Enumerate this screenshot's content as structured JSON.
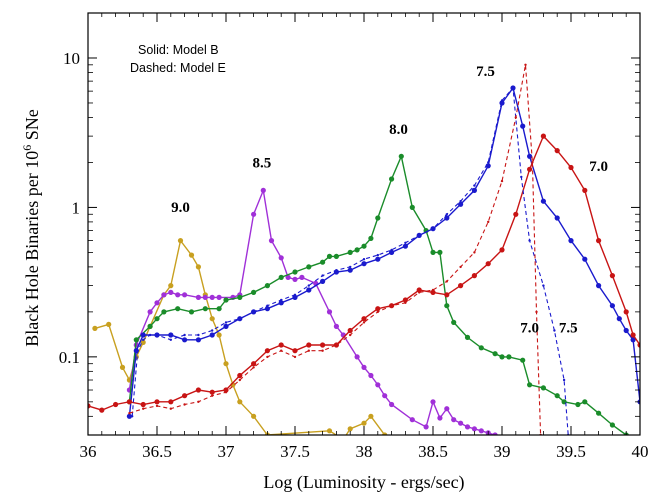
{
  "chart_data": {
    "type": "line",
    "xlabel": "Log (Luminosity - ergs/sec)",
    "ylabel_main": "Black Hole Binaries per 10",
    "ylabel_sup": "6",
    "ylabel_tail": " SNe",
    "yscale": "log",
    "xlim": [
      36,
      40
    ],
    "ylim": [
      0.03,
      20
    ],
    "x_ticks": [
      36,
      36.5,
      37,
      37.5,
      38,
      38.5,
      39,
      39.5,
      40
    ],
    "x_tick_labels": [
      "36",
      "36.5",
      "37",
      "37.5",
      "38",
      "38.5",
      "39",
      "39.5",
      "40"
    ],
    "y_ticks": [
      0.1,
      1,
      10
    ],
    "y_tick_labels": [
      "0.1",
      "1",
      "10"
    ],
    "notes": [
      "Solid: Model B",
      "Dashed: Model E"
    ],
    "series": [
      {
        "label": "9.0",
        "color": "#c8a020",
        "style": "solid",
        "points": [
          [
            36.05,
            0.155
          ],
          [
            36.15,
            0.165
          ],
          [
            36.25,
            0.085
          ],
          [
            36.3,
            0.07
          ],
          [
            36.35,
            0.1
          ],
          [
            36.4,
            0.125
          ],
          [
            36.45,
            0.16
          ],
          [
            36.55,
            0.26
          ],
          [
            36.6,
            0.3
          ],
          [
            36.67,
            0.6
          ],
          [
            36.75,
            0.48
          ],
          [
            36.8,
            0.4
          ],
          [
            36.85,
            0.26
          ],
          [
            36.9,
            0.18
          ],
          [
            36.95,
            0.14
          ],
          [
            37.0,
            0.09
          ],
          [
            37.05,
            0.065
          ],
          [
            37.1,
            0.05
          ],
          [
            37.2,
            0.04
          ],
          [
            37.3,
            0.03
          ],
          [
            37.75,
            0.032
          ],
          [
            37.85,
            0.028
          ],
          [
            37.9,
            0.033
          ],
          [
            38.0,
            0.036
          ],
          [
            38.05,
            0.04
          ],
          [
            38.15,
            0.03
          ]
        ]
      },
      {
        "label": "8.5",
        "color": "#a030d8",
        "style": "solid",
        "points": [
          [
            36.3,
            0.06
          ],
          [
            36.35,
            0.12
          ],
          [
            36.45,
            0.2
          ],
          [
            36.5,
            0.23
          ],
          [
            36.55,
            0.26
          ],
          [
            36.6,
            0.27
          ],
          [
            36.65,
            0.26
          ],
          [
            36.7,
            0.26
          ],
          [
            36.8,
            0.25
          ],
          [
            36.85,
            0.25
          ],
          [
            36.9,
            0.25
          ],
          [
            36.95,
            0.25
          ],
          [
            37.05,
            0.25
          ],
          [
            37.1,
            0.26
          ],
          [
            37.2,
            0.9
          ],
          [
            37.27,
            1.3
          ],
          [
            37.33,
            0.6
          ],
          [
            37.4,
            0.46
          ],
          [
            37.45,
            0.34
          ],
          [
            37.5,
            0.33
          ],
          [
            37.55,
            0.34
          ],
          [
            37.65,
            0.31
          ],
          [
            37.75,
            0.2
          ],
          [
            37.8,
            0.16
          ],
          [
            37.85,
            0.14
          ],
          [
            37.95,
            0.1
          ],
          [
            38.0,
            0.085
          ],
          [
            38.05,
            0.075
          ],
          [
            38.1,
            0.065
          ],
          [
            38.15,
            0.055
          ],
          [
            38.2,
            0.048
          ],
          [
            38.35,
            0.038
          ],
          [
            38.45,
            0.034
          ],
          [
            38.5,
            0.05
          ],
          [
            38.55,
            0.039
          ],
          [
            38.6,
            0.045
          ],
          [
            38.65,
            0.038
          ],
          [
            38.7,
            0.036
          ],
          [
            38.75,
            0.034
          ],
          [
            38.8,
            0.033
          ],
          [
            38.85,
            0.032
          ],
          [
            38.9,
            0.031
          ],
          [
            38.95,
            0.03
          ]
        ]
      },
      {
        "label": "8.0",
        "color": "#1a8c2a",
        "style": "solid",
        "points": [
          [
            36.3,
            0.05
          ],
          [
            36.35,
            0.13
          ],
          [
            36.45,
            0.16
          ],
          [
            36.5,
            0.18
          ],
          [
            36.55,
            0.2
          ],
          [
            36.65,
            0.21
          ],
          [
            36.75,
            0.2
          ],
          [
            36.85,
            0.21
          ],
          [
            36.95,
            0.21
          ],
          [
            37.0,
            0.24
          ],
          [
            37.1,
            0.25
          ],
          [
            37.2,
            0.27
          ],
          [
            37.3,
            0.3
          ],
          [
            37.4,
            0.34
          ],
          [
            37.5,
            0.37
          ],
          [
            37.6,
            0.4
          ],
          [
            37.7,
            0.43
          ],
          [
            37.75,
            0.47
          ],
          [
            37.8,
            0.47
          ],
          [
            37.9,
            0.5
          ],
          [
            37.95,
            0.52
          ],
          [
            38.0,
            0.55
          ],
          [
            38.05,
            0.62
          ],
          [
            38.1,
            0.85
          ],
          [
            38.2,
            1.55
          ],
          [
            38.27,
            2.2
          ],
          [
            38.35,
            1.0
          ],
          [
            38.45,
            0.7
          ],
          [
            38.5,
            0.5
          ],
          [
            38.55,
            0.5
          ],
          [
            38.6,
            0.22
          ],
          [
            38.65,
            0.17
          ],
          [
            38.75,
            0.135
          ],
          [
            38.85,
            0.115
          ],
          [
            38.95,
            0.105
          ],
          [
            39.0,
            0.1
          ],
          [
            39.05,
            0.1
          ],
          [
            39.15,
            0.095
          ],
          [
            39.2,
            0.065
          ],
          [
            39.3,
            0.062
          ],
          [
            39.4,
            0.055
          ],
          [
            39.45,
            0.05
          ],
          [
            39.55,
            0.048
          ],
          [
            39.6,
            0.05
          ],
          [
            39.7,
            0.042
          ],
          [
            39.8,
            0.035
          ],
          [
            39.9,
            0.03
          ]
        ]
      },
      {
        "label": "7.5",
        "color": "#1a1acd",
        "style": "solid",
        "points": [
          [
            36.3,
            0.04
          ],
          [
            36.35,
            0.11
          ],
          [
            36.4,
            0.14
          ],
          [
            36.5,
            0.14
          ],
          [
            36.6,
            0.14
          ],
          [
            36.7,
            0.13
          ],
          [
            36.8,
            0.13
          ],
          [
            36.9,
            0.14
          ],
          [
            37.0,
            0.16
          ],
          [
            37.1,
            0.18
          ],
          [
            37.2,
            0.2
          ],
          [
            37.3,
            0.21
          ],
          [
            37.4,
            0.23
          ],
          [
            37.5,
            0.25
          ],
          [
            37.6,
            0.28
          ],
          [
            37.7,
            0.32
          ],
          [
            37.8,
            0.37
          ],
          [
            37.9,
            0.38
          ],
          [
            38.0,
            0.42
          ],
          [
            38.1,
            0.45
          ],
          [
            38.2,
            0.5
          ],
          [
            38.3,
            0.55
          ],
          [
            38.4,
            0.65
          ],
          [
            38.5,
            0.72
          ],
          [
            38.6,
            0.85
          ],
          [
            38.7,
            1.05
          ],
          [
            38.8,
            1.3
          ],
          [
            38.9,
            1.9
          ],
          [
            39.0,
            5.0
          ],
          [
            39.08,
            6.3
          ],
          [
            39.15,
            3.5
          ],
          [
            39.2,
            2.2
          ],
          [
            39.3,
            1.1
          ],
          [
            39.4,
            0.85
          ],
          [
            39.5,
            0.6
          ],
          [
            39.6,
            0.45
          ],
          [
            39.7,
            0.3
          ],
          [
            39.8,
            0.22
          ],
          [
            39.85,
            0.18
          ],
          [
            39.9,
            0.15
          ],
          [
            39.95,
            0.13
          ],
          [
            40.0,
            0.05
          ]
        ]
      },
      {
        "label": "7.0",
        "color": "#c81414",
        "style": "solid",
        "points": [
          [
            36.0,
            0.047
          ],
          [
            36.1,
            0.044
          ],
          [
            36.2,
            0.048
          ],
          [
            36.3,
            0.05
          ],
          [
            36.4,
            0.048
          ],
          [
            36.5,
            0.05
          ],
          [
            36.6,
            0.05
          ],
          [
            36.7,
            0.055
          ],
          [
            36.8,
            0.06
          ],
          [
            36.9,
            0.058
          ],
          [
            37.0,
            0.06
          ],
          [
            37.1,
            0.075
          ],
          [
            37.2,
            0.09
          ],
          [
            37.3,
            0.11
          ],
          [
            37.4,
            0.12
          ],
          [
            37.5,
            0.11
          ],
          [
            37.6,
            0.12
          ],
          [
            37.7,
            0.12
          ],
          [
            37.8,
            0.12
          ],
          [
            37.9,
            0.15
          ],
          [
            38.0,
            0.18
          ],
          [
            38.1,
            0.21
          ],
          [
            38.2,
            0.22
          ],
          [
            38.3,
            0.24
          ],
          [
            38.4,
            0.28
          ],
          [
            38.5,
            0.27
          ],
          [
            38.6,
            0.26
          ],
          [
            38.7,
            0.3
          ],
          [
            38.8,
            0.35
          ],
          [
            38.9,
            0.42
          ],
          [
            39.0,
            0.52
          ],
          [
            39.1,
            0.9
          ],
          [
            39.2,
            1.8
          ],
          [
            39.3,
            3.0
          ],
          [
            39.4,
            2.4
          ],
          [
            39.5,
            1.85
          ],
          [
            39.6,
            1.3
          ],
          [
            39.7,
            0.6
          ],
          [
            39.8,
            0.35
          ],
          [
            39.9,
            0.2
          ],
          [
            39.95,
            0.14
          ],
          [
            40.0,
            0.12
          ]
        ]
      },
      {
        "label": "7.5",
        "color": "#1a1acd",
        "style": "dashed",
        "points": [
          [
            36.32,
            0.04
          ],
          [
            36.36,
            0.11
          ],
          [
            36.4,
            0.13
          ],
          [
            36.45,
            0.14
          ],
          [
            36.5,
            0.14
          ],
          [
            36.6,
            0.13
          ],
          [
            36.7,
            0.14
          ],
          [
            36.8,
            0.14
          ],
          [
            36.9,
            0.15
          ],
          [
            37.0,
            0.17
          ],
          [
            37.1,
            0.18
          ],
          [
            37.2,
            0.2
          ],
          [
            37.3,
            0.22
          ],
          [
            37.4,
            0.24
          ],
          [
            37.5,
            0.26
          ],
          [
            37.6,
            0.3
          ],
          [
            37.7,
            0.35
          ],
          [
            37.8,
            0.38
          ],
          [
            37.9,
            0.4
          ],
          [
            38.0,
            0.45
          ],
          [
            38.1,
            0.48
          ],
          [
            38.2,
            0.52
          ],
          [
            38.3,
            0.58
          ],
          [
            38.4,
            0.65
          ],
          [
            38.5,
            0.72
          ],
          [
            38.6,
            0.9
          ],
          [
            38.7,
            1.1
          ],
          [
            38.8,
            1.4
          ],
          [
            38.9,
            2.0
          ],
          [
            39.0,
            5.2
          ],
          [
            39.08,
            6.3
          ],
          [
            39.14,
            1.6
          ],
          [
            39.2,
            0.6
          ],
          [
            39.3,
            0.3
          ],
          [
            39.38,
            0.15
          ],
          [
            39.45,
            0.07
          ],
          [
            39.48,
            0.03
          ]
        ]
      },
      {
        "label": "7.0",
        "color": "#c81414",
        "style": "dashed",
        "points": [
          [
            36.3,
            0.042
          ],
          [
            36.4,
            0.045
          ],
          [
            36.5,
            0.047
          ],
          [
            36.6,
            0.045
          ],
          [
            36.7,
            0.048
          ],
          [
            36.8,
            0.05
          ],
          [
            36.9,
            0.055
          ],
          [
            37.0,
            0.058
          ],
          [
            37.1,
            0.07
          ],
          [
            37.2,
            0.085
          ],
          [
            37.3,
            0.1
          ],
          [
            37.4,
            0.11
          ],
          [
            37.5,
            0.1
          ],
          [
            37.6,
            0.11
          ],
          [
            37.7,
            0.11
          ],
          [
            37.8,
            0.12
          ],
          [
            37.9,
            0.14
          ],
          [
            38.0,
            0.17
          ],
          [
            38.1,
            0.2
          ],
          [
            38.2,
            0.22
          ],
          [
            38.3,
            0.23
          ],
          [
            38.4,
            0.27
          ],
          [
            38.5,
            0.28
          ],
          [
            38.6,
            0.32
          ],
          [
            38.7,
            0.4
          ],
          [
            38.8,
            0.5
          ],
          [
            38.9,
            0.8
          ],
          [
            39.0,
            1.5
          ],
          [
            39.1,
            4.0
          ],
          [
            39.17,
            9.0
          ],
          [
            39.22,
            2.0
          ],
          [
            39.25,
            0.2
          ],
          [
            39.28,
            0.03
          ]
        ]
      }
    ],
    "peak_labels": [
      {
        "text": "9.0",
        "x": 36.67,
        "y": 0.93
      },
      {
        "text": "8.5",
        "x": 37.26,
        "y": 1.85
      },
      {
        "text": "8.0",
        "x": 38.25,
        "y": 3.1
      },
      {
        "text": "7.5",
        "x": 38.88,
        "y": 7.6
      },
      {
        "text": "7.0",
        "x": 39.7,
        "y": 1.75
      },
      {
        "text": "7.0",
        "x": 39.2,
        "y": 0.145
      },
      {
        "text": "7.5",
        "x": 39.48,
        "y": 0.145
      }
    ]
  }
}
